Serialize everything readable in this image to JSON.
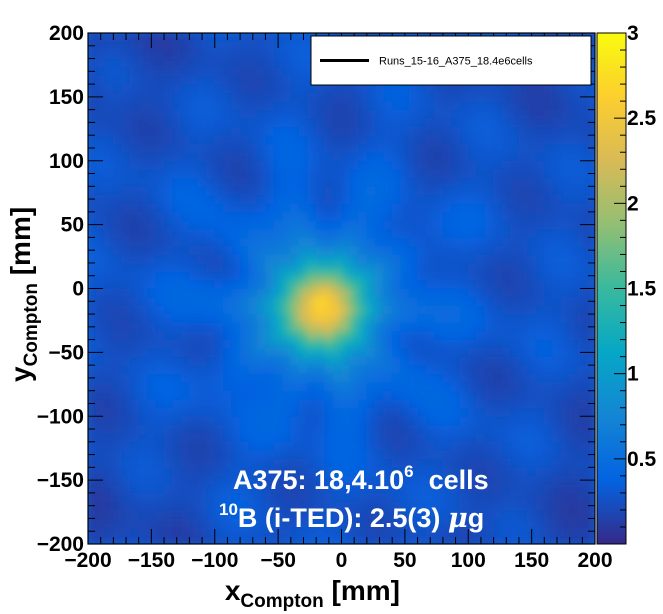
{
  "chart_data": {
    "type": "heatmap",
    "xlabel": {
      "main": "x",
      "sub": "Compton",
      "unit": " [mm]"
    },
    "ylabel": {
      "main": "y",
      "sub": "Compton",
      "unit": " [mm]"
    },
    "xlim": [
      -200,
      200
    ],
    "ylim": [
      -200,
      200
    ],
    "zlim": [
      0,
      3
    ],
    "x_ticks": [
      -200,
      -150,
      -100,
      -50,
      0,
      50,
      100,
      150,
      200
    ],
    "y_ticks": [
      -200,
      -150,
      -100,
      -50,
      0,
      50,
      100,
      150,
      200
    ],
    "x_tick_labels": [
      "−200",
      "−150",
      "−100",
      "−50",
      "0",
      "50",
      "100",
      "150",
      "200"
    ],
    "y_tick_labels": [
      "−200",
      "−150",
      "−100",
      "−50",
      "0",
      "50",
      "100",
      "150",
      "200"
    ],
    "colorbar_ticks": [
      0.5,
      1,
      1.5,
      2,
      2.5,
      3
    ],
    "colorbar_tick_labels": [
      "0.5",
      "1",
      "1.5",
      "2",
      "2.5",
      "3"
    ],
    "hotspot": {
      "x": -15,
      "y": -15,
      "peak": 2.6
    },
    "background_level": 0.25,
    "colors": {
      "palette": [
        "#352a87",
        "#0363e1",
        "#1485d4",
        "#06a7c6",
        "#38b99e",
        "#92bf73",
        "#d9ba56",
        "#fcce2e",
        "#f9fb0e"
      ],
      "background": "#ffffff",
      "annotation": "#ffffff"
    },
    "legend": {
      "entries": [
        {
          "label": "Runs_15-16_A375_18.4e6cells",
          "style": "line",
          "color": "#000000"
        }
      ],
      "position": "top-right"
    },
    "annotations": {
      "line1": {
        "text": "A375: 18,4.10",
        "sup": "6",
        "tail": "  cells"
      },
      "line2": {
        "sup": "10",
        "text": "B (i-TED): 2.5(3) ",
        "mu": "μ",
        "tail": "g"
      }
    }
  }
}
